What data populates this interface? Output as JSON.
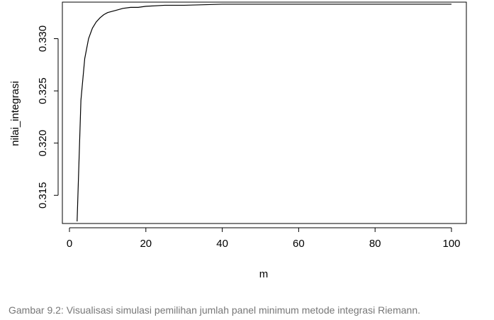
{
  "caption": "Gambar 9.2: Visualisasi simulasi pemilihan jumlah panel minimum metode integrasi Riemann.",
  "chart_data": {
    "type": "line",
    "xlabel": "m",
    "ylabel": "nilai_integrasi",
    "xlim": [
      0,
      100
    ],
    "ylim": [
      0.3123,
      0.3335
    ],
    "x_ticks": [
      "0",
      "20",
      "40",
      "60",
      "80",
      "100"
    ],
    "x_tick_values": [
      0,
      20,
      40,
      60,
      80,
      100
    ],
    "y_ticks": [
      "0.315",
      "0.320",
      "0.325",
      "0.330"
    ],
    "y_tick_values": [
      0.315,
      0.32,
      0.325,
      0.33
    ],
    "grid": false,
    "legend": "none",
    "line_color": "#000000",
    "series": [
      {
        "x": [
          2,
          3,
          4,
          5,
          6,
          7,
          8,
          9,
          10,
          12,
          14,
          16,
          18,
          20,
          25,
          30,
          40,
          50,
          60,
          70,
          80,
          90,
          100
        ],
        "y": [
          0.3125,
          0.3241,
          0.3281,
          0.33,
          0.331,
          0.3316,
          0.332,
          0.3323,
          0.3325,
          0.3327,
          0.3329,
          0.333,
          0.333,
          0.3331,
          0.3332,
          0.3332,
          0.3333,
          0.3333,
          0.3333,
          0.3333,
          0.3333,
          0.3333,
          0.3333
        ]
      }
    ]
  }
}
